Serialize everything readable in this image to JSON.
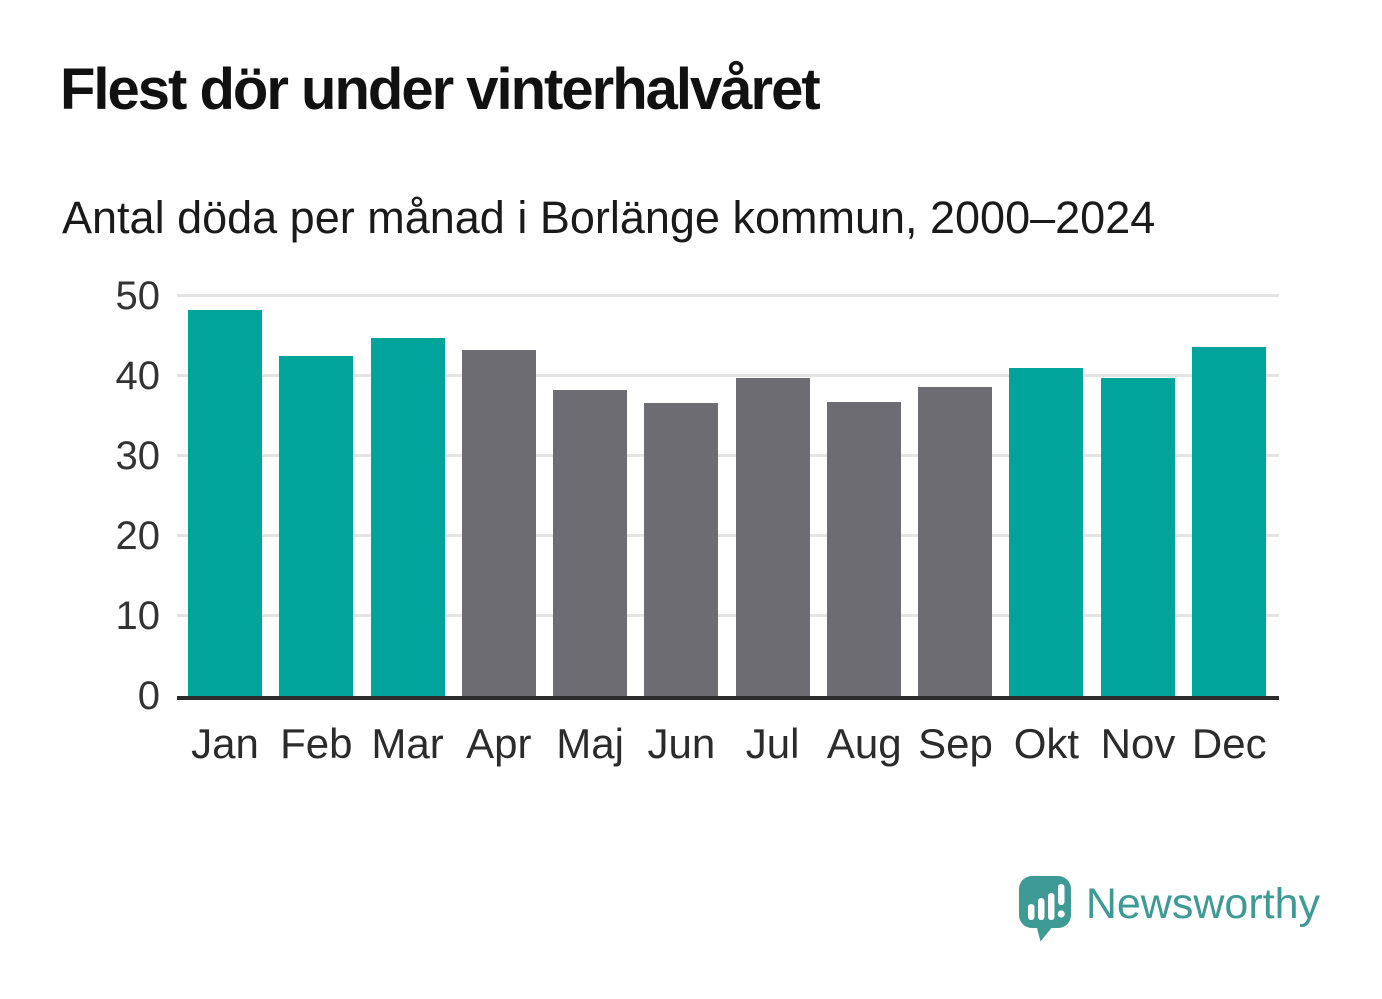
{
  "title": "Flest dör under vinterhalvåret",
  "subtitle": "Antal döda per månad i Borlänge kommun, 2000–2024",
  "chart_data": {
    "type": "bar",
    "title": "Flest dör under vinterhalvåret",
    "subtitle": "Antal döda per månad i Borlänge kommun, 2000–2024",
    "categories": [
      "Jan",
      "Feb",
      "Mar",
      "Apr",
      "Maj",
      "Jun",
      "Jul",
      "Aug",
      "Sep",
      "Okt",
      "Nov",
      "Dec"
    ],
    "values": [
      48.3,
      42.5,
      44.8,
      43.2,
      38.3,
      36.6,
      39.8,
      36.7,
      38.6,
      41.0,
      39.8,
      43.6
    ],
    "bar_palette": [
      "highlight",
      "highlight",
      "highlight",
      "muted",
      "muted",
      "muted",
      "muted",
      "muted",
      "muted",
      "highlight",
      "highlight",
      "highlight"
    ],
    "xlabel": "",
    "ylabel": "",
    "ylim": [
      0,
      50
    ],
    "yticks": [
      0,
      10,
      20,
      30,
      40,
      50
    ],
    "grid": true,
    "legend": "none",
    "colors": {
      "highlight": "#00a49b",
      "muted": "#6d6c72",
      "gridline": "#e4e4e4",
      "axis_line": "#2b2b2b",
      "tick_label": "#333333"
    }
  },
  "branding": {
    "logo_text": "Newsworthy",
    "logo_color": "#3d9a94"
  }
}
